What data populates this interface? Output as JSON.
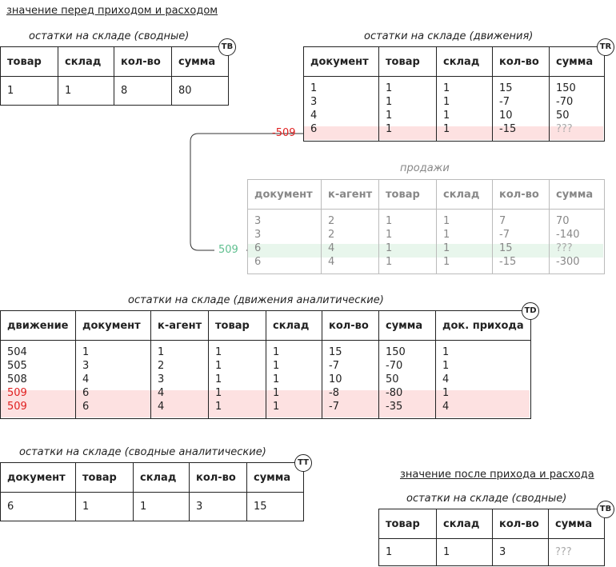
{
  "heading_before": "значение перед приходом и расходом",
  "heading_after": "значение после прихода и расхода",
  "tb_before": {
    "caption": "остатки на складе (сводные)",
    "badge": "TB",
    "headers": [
      "товар",
      "склад",
      "кол-во",
      "сумма"
    ],
    "rows": [
      [
        "1",
        "1",
        "8",
        "80"
      ]
    ]
  },
  "tr": {
    "caption": "остатки на складе (движения)",
    "badge": "TR",
    "headers": [
      "документ",
      "товар",
      "склад",
      "кол-во",
      "сумма"
    ],
    "rows": [
      [
        "1",
        "1",
        "1",
        "15",
        "150"
      ],
      [
        "3",
        "1",
        "1",
        "-7",
        "-70"
      ],
      [
        "4",
        "1",
        "1",
        "10",
        "50"
      ],
      [
        "6",
        "1",
        "1",
        "-15",
        "???"
      ]
    ]
  },
  "sales": {
    "caption": "продажи",
    "headers": [
      "документ",
      "к-агент",
      "товар",
      "склад",
      "кол-во",
      "сумма"
    ],
    "rows": [
      [
        "3",
        "2",
        "1",
        "1",
        "7",
        "70"
      ],
      [
        "3",
        "2",
        "1",
        "1",
        "-7",
        "-140"
      ],
      [
        "6",
        "4",
        "1",
        "1",
        "15",
        "???"
      ],
      [
        "6",
        "4",
        "1",
        "1",
        "-15",
        "-300"
      ]
    ]
  },
  "link": {
    "red_label": "-509",
    "green_label": "509"
  },
  "td": {
    "caption": "остатки на складе (движения аналитические)",
    "badge": "TD",
    "headers": [
      "движение",
      "документ",
      "к-агент",
      "товар",
      "склад",
      "кол-во",
      "сумма",
      "док. прихода"
    ],
    "rows": [
      [
        "504",
        "1",
        "1",
        "1",
        "1",
        "15",
        "150",
        "1"
      ],
      [
        "505",
        "3",
        "2",
        "1",
        "1",
        "-7",
        "-70",
        "1"
      ],
      [
        "508",
        "4",
        "3",
        "1",
        "1",
        "10",
        "50",
        "4"
      ],
      [
        "509",
        "6",
        "4",
        "1",
        "1",
        "-8",
        "-80",
        "1"
      ],
      [
        "509",
        "6",
        "4",
        "1",
        "1",
        "-7",
        "-35",
        "4"
      ]
    ]
  },
  "tt": {
    "caption": "остатки на складе (сводные аналитические)",
    "badge": "TT",
    "headers": [
      "документ",
      "товар",
      "склад",
      "кол-во",
      "сумма"
    ],
    "rows": [
      [
        "6",
        "1",
        "1",
        "3",
        "15"
      ]
    ]
  },
  "tb_after": {
    "caption": "остатки на складе (сводные)",
    "badge": "TB",
    "headers": [
      "товар",
      "склад",
      "кол-во",
      "сумма"
    ],
    "rows": [
      [
        "1",
        "1",
        "3",
        "???"
      ]
    ]
  },
  "colors": {
    "red": "#e02020",
    "green": "#5fbf8f",
    "highlight_red": "#fde1e1",
    "highlight_green": "#e8f6ec"
  }
}
